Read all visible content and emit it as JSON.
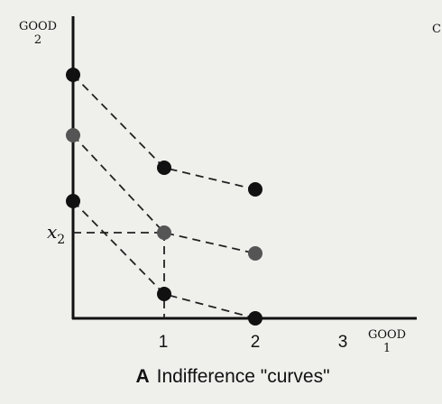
{
  "chart_data": {
    "type": "line",
    "caption_letter": "A",
    "caption": "Indifference \"curves\"",
    "ylabel": {
      "line1": "GOOD",
      "line2": "2"
    },
    "xlabel": {
      "line1": "GOOD",
      "line2": "1"
    },
    "xticks": [
      "1",
      "2",
      "3"
    ],
    "xlim": [
      0,
      3.8
    ],
    "ylim": [
      0,
      2.75
    ],
    "x2_label": {
      "main": "x",
      "sub": "2"
    },
    "x2_value": 0.95,
    "series": [
      {
        "x": [
          0,
          1,
          2
        ],
        "y": [
          2.7,
          1.67,
          1.43
        ],
        "color": "#111111"
      },
      {
        "x": [
          0,
          1,
          2
        ],
        "y": [
          2.03,
          0.95,
          0.72
        ],
        "color": "#555555"
      },
      {
        "x": [
          0,
          1,
          2
        ],
        "y": [
          1.3,
          0.27,
          0.0
        ],
        "color": "#111111"
      }
    ],
    "dashed_guides": [
      {
        "from": [
          0,
          0.95
        ],
        "to": [
          1,
          0.95
        ]
      },
      {
        "from": [
          1,
          0.95
        ],
        "to": [
          1,
          0
        ]
      }
    ],
    "edge_fragment": "C"
  }
}
